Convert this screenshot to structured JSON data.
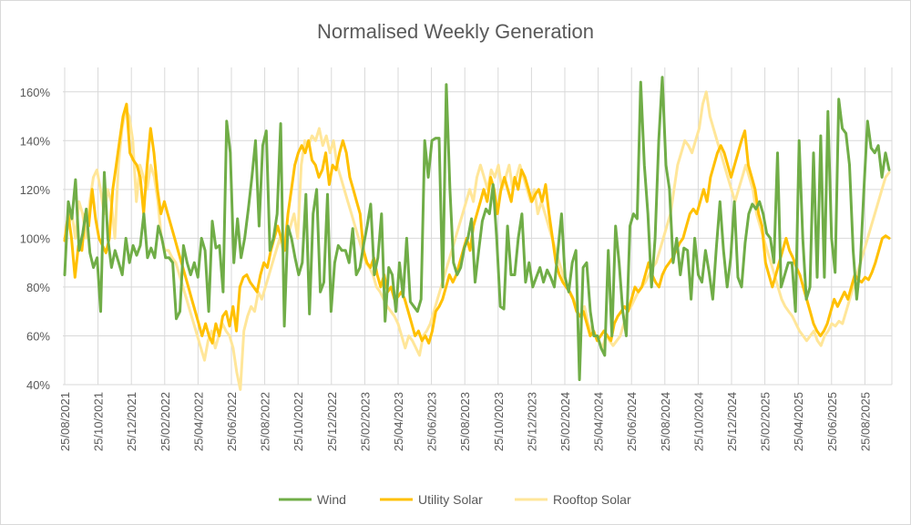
{
  "chart_data": {
    "type": "line",
    "title": "Normalised Weekly Generation",
    "xlabel": "",
    "ylabel": "",
    "ylim": [
      0.4,
      1.7
    ],
    "y_ticks": [
      "40%",
      "60%",
      "80%",
      "100%",
      "120%",
      "140%",
      "160%"
    ],
    "x_tick_labels": [
      "25/08/2021",
      "25/10/2021",
      "25/12/2021",
      "25/02/2022",
      "25/04/2022",
      "25/06/2022",
      "25/08/2022",
      "25/10/2022",
      "25/12/2022",
      "25/02/2023",
      "25/04/2023",
      "25/06/2023",
      "25/08/2023",
      "25/10/2023",
      "25/12/2023",
      "25/02/2024",
      "25/04/2024",
      "25/06/2024",
      "25/08/2024",
      "25/10/2024",
      "25/12/2024",
      "25/02/2025",
      "25/04/2025",
      "25/06/2025",
      "25/08/2025"
    ],
    "x_start": "25/08/2021",
    "grid": true,
    "legend_position": "bottom",
    "series": [
      {
        "name": "Wind",
        "color": "#70ad47",
        "values": [
          0.85,
          1.15,
          1.08,
          1.24,
          0.95,
          1.02,
          1.12,
          0.94,
          0.88,
          0.92,
          0.7,
          1.27,
          1.0,
          0.88,
          0.95,
          0.9,
          0.85,
          1.0,
          0.9,
          0.97,
          0.93,
          0.97,
          1.1,
          0.92,
          0.96,
          0.92,
          1.05,
          1.0,
          0.92,
          0.92,
          0.9,
          0.67,
          0.7,
          0.97,
          0.9,
          0.85,
          0.9,
          0.84,
          1.0,
          0.95,
          0.7,
          1.07,
          0.96,
          0.97,
          0.78,
          1.48,
          1.35,
          0.9,
          1.08,
          0.92,
          1.0,
          1.12,
          1.25,
          1.4,
          1.05,
          1.38,
          1.44,
          0.95,
          1.0,
          1.1,
          1.47,
          0.64,
          1.05,
          1.0,
          0.92,
          0.85,
          0.9,
          1.18,
          0.69,
          1.1,
          1.2,
          0.78,
          0.82,
          1.18,
          0.7,
          0.9,
          0.97,
          0.95,
          0.95,
          0.9,
          1.04,
          0.85,
          0.88,
          0.97,
          1.05,
          1.14,
          0.85,
          0.92,
          1.1,
          0.66,
          0.88,
          0.85,
          0.7,
          0.9,
          0.76,
          1.0,
          0.74,
          0.72,
          0.7,
          0.75,
          1.4,
          1.25,
          1.4,
          1.41,
          1.41,
          0.8,
          1.63,
          1.2,
          0.9,
          0.85,
          0.88,
          0.96,
          1.0,
          1.08,
          0.82,
          0.95,
          1.07,
          1.12,
          1.1,
          1.22,
          1.0,
          0.72,
          0.71,
          1.05,
          0.85,
          0.85,
          1.0,
          1.1,
          0.82,
          0.9,
          0.8,
          0.84,
          0.88,
          0.82,
          0.87,
          0.84,
          0.8,
          0.95,
          1.1,
          0.84,
          0.78,
          0.9,
          0.95,
          0.42,
          0.88,
          0.9,
          0.7,
          0.6,
          0.6,
          0.55,
          0.52,
          0.95,
          0.6,
          1.05,
          0.9,
          0.7,
          0.6,
          1.05,
          1.1,
          1.08,
          1.64,
          1.3,
          1.1,
          0.8,
          1.0,
          1.4,
          1.66,
          1.3,
          1.2,
          0.9,
          1.0,
          0.85,
          0.96,
          0.95,
          0.75,
          1.0,
          0.85,
          0.82,
          0.95,
          0.86,
          0.75,
          0.96,
          1.15,
          0.95,
          0.8,
          0.92,
          1.15,
          0.84,
          0.8,
          0.98,
          1.1,
          1.14,
          1.12,
          1.15,
          1.1,
          1.02,
          1.0,
          0.9,
          1.35,
          0.8,
          0.85,
          0.9,
          0.9,
          0.7,
          1.4,
          1.0,
          0.75,
          0.8,
          1.35,
          0.84,
          1.42,
          0.84,
          1.52,
          1.0,
          0.86,
          1.57,
          1.45,
          1.43,
          1.3,
          0.95,
          0.75,
          0.9,
          1.2,
          1.48,
          1.37,
          1.35,
          1.38,
          1.25,
          1.35,
          1.28
        ]
      },
      {
        "name": "Utility Solar",
        "color": "#ffc000",
        "values": [
          0.99,
          1.1,
          1.0,
          0.84,
          0.97,
          0.95,
          1.1,
          1.05,
          1.2,
          1.08,
          1.0,
          0.97,
          0.94,
          1.0,
          1.2,
          1.3,
          1.4,
          1.5,
          1.55,
          1.35,
          1.32,
          1.3,
          1.25,
          1.1,
          1.3,
          1.45,
          1.35,
          1.2,
          1.1,
          1.15,
          1.1,
          1.05,
          1.0,
          0.95,
          0.9,
          0.85,
          0.8,
          0.75,
          0.7,
          0.65,
          0.6,
          0.65,
          0.6,
          0.57,
          0.65,
          0.6,
          0.68,
          0.7,
          0.64,
          0.72,
          0.62,
          0.8,
          0.84,
          0.85,
          0.82,
          0.8,
          0.78,
          0.85,
          0.9,
          0.88,
          0.95,
          1.0,
          1.05,
          1.0,
          0.95,
          1.1,
          1.2,
          1.3,
          1.35,
          1.38,
          1.35,
          1.4,
          1.32,
          1.3,
          1.25,
          1.28,
          1.35,
          1.22,
          1.3,
          1.28,
          1.35,
          1.4,
          1.35,
          1.25,
          1.2,
          1.15,
          1.1,
          0.95,
          0.9,
          0.88,
          0.92,
          0.85,
          0.8,
          0.85,
          0.78,
          0.8,
          0.75,
          0.76,
          0.78,
          0.75,
          0.7,
          0.65,
          0.6,
          0.62,
          0.58,
          0.6,
          0.57,
          0.62,
          0.7,
          0.72,
          0.75,
          0.8,
          0.85,
          0.82,
          0.85,
          0.9,
          0.95,
          1.0,
          0.95,
          1.05,
          1.1,
          1.15,
          1.2,
          1.15,
          1.25,
          1.2,
          1.1,
          1.2,
          1.25,
          1.2,
          1.15,
          1.25,
          1.2,
          1.28,
          1.25,
          1.2,
          1.15,
          1.18,
          1.2,
          1.15,
          1.22,
          1.1,
          1.0,
          0.9,
          0.85,
          0.82,
          0.8,
          0.78,
          0.75,
          0.7,
          0.68,
          0.7,
          0.65,
          0.6,
          0.62,
          0.58,
          0.6,
          0.62,
          0.6,
          0.58,
          0.65,
          0.68,
          0.7,
          0.72,
          0.7,
          0.75,
          0.8,
          0.78,
          0.8,
          0.85,
          0.9,
          0.85,
          0.82,
          0.8,
          0.85,
          0.88,
          0.9,
          0.92,
          0.95,
          0.98,
          1.0,
          1.05,
          1.1,
          1.12,
          1.1,
          1.15,
          1.2,
          1.15,
          1.25,
          1.3,
          1.35,
          1.38,
          1.35,
          1.3,
          1.25,
          1.3,
          1.35,
          1.4,
          1.44,
          1.3,
          1.25,
          1.2,
          1.1,
          1.05,
          0.9,
          0.85,
          0.8,
          0.85,
          0.9,
          0.95,
          1.0,
          0.95,
          0.92,
          0.88,
          0.85,
          0.8,
          0.75,
          0.7,
          0.65,
          0.62,
          0.6,
          0.62,
          0.65,
          0.7,
          0.75,
          0.72,
          0.75,
          0.78,
          0.75,
          0.8,
          0.85,
          0.83,
          0.82,
          0.84,
          0.83,
          0.86,
          0.9,
          0.95,
          1.0,
          1.01,
          1.0
        ]
      },
      {
        "name": "Rooftop Solar",
        "color": "#ffe699",
        "values": [
          1.0,
          1.05,
          1.1,
          1.0,
          1.15,
          1.1,
          1.0,
          1.15,
          1.25,
          1.28,
          1.2,
          1.1,
          1.2,
          1.15,
          1.0,
          1.3,
          1.45,
          1.53,
          1.5,
          1.4,
          1.15,
          1.3,
          1.25,
          1.2,
          1.3,
          1.25,
          1.15,
          1.0,
          0.95,
          0.95,
          0.92,
          0.9,
          0.85,
          0.8,
          0.75,
          0.7,
          0.65,
          0.6,
          0.55,
          0.5,
          0.58,
          0.62,
          0.55,
          0.6,
          0.65,
          0.62,
          0.6,
          0.55,
          0.45,
          0.38,
          0.62,
          0.68,
          0.72,
          0.7,
          0.78,
          0.75,
          0.8,
          0.85,
          0.9,
          0.95,
          1.0,
          0.95,
          1.0,
          1.05,
          1.1,
          1.0,
          1.3,
          1.4,
          1.38,
          1.42,
          1.4,
          1.45,
          1.38,
          1.42,
          1.35,
          1.4,
          1.3,
          1.25,
          1.2,
          1.15,
          1.1,
          1.05,
          1.0,
          0.95,
          0.9,
          0.88,
          0.85,
          0.8,
          0.78,
          0.75,
          0.72,
          0.7,
          0.68,
          0.65,
          0.6,
          0.55,
          0.6,
          0.58,
          0.55,
          0.52,
          0.6,
          0.62,
          0.65,
          0.7,
          0.75,
          0.8,
          0.85,
          0.9,
          0.95,
          1.0,
          1.05,
          1.1,
          1.15,
          1.2,
          1.15,
          1.25,
          1.3,
          1.25,
          1.2,
          1.28,
          1.25,
          1.3,
          1.2,
          1.25,
          1.3,
          1.2,
          1.25,
          1.3,
          1.25,
          1.2,
          1.15,
          1.2,
          1.1,
          1.15,
          1.1,
          1.05,
          1.0,
          0.95,
          0.9,
          0.85,
          0.8,
          0.78,
          0.75,
          0.7,
          0.68,
          0.72,
          0.65,
          0.62,
          0.6,
          0.58,
          0.55,
          0.6,
          0.58,
          0.56,
          0.58,
          0.6,
          0.65,
          0.7,
          0.72,
          0.75,
          0.78,
          0.8,
          0.82,
          0.85,
          0.88,
          0.9,
          0.95,
          1.0,
          1.05,
          1.1,
          1.2,
          1.3,
          1.35,
          1.4,
          1.38,
          1.35,
          1.4,
          1.45,
          1.55,
          1.6,
          1.5,
          1.45,
          1.4,
          1.35,
          1.3,
          1.25,
          1.2,
          1.15,
          1.2,
          1.25,
          1.3,
          1.25,
          1.2,
          1.1,
          1.05,
          1.0,
          0.95,
          0.9,
          0.85,
          0.8,
          0.75,
          0.72,
          0.7,
          0.68,
          0.65,
          0.62,
          0.6,
          0.58,
          0.6,
          0.62,
          0.58,
          0.56,
          0.6,
          0.62,
          0.65,
          0.64,
          0.66,
          0.65,
          0.7,
          0.75,
          0.8,
          0.85,
          0.9,
          0.95,
          1.0,
          1.05,
          1.1,
          1.15,
          1.2,
          1.25,
          1.27
        ]
      }
    ]
  }
}
